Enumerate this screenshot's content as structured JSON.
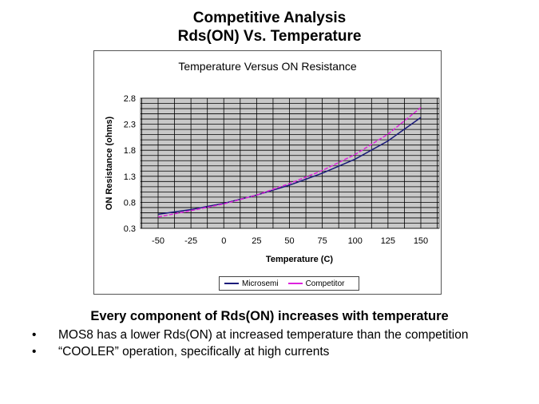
{
  "slide": {
    "title_line1": "Competitive Analysis",
    "title_line2": "Rds(ON) Vs. Temperature",
    "subheading": "Every component of Rds(ON) increases with temperature",
    "bullets": [
      "MOS8 has a lower Rds(ON) at increased temperature than the competition",
      "“COOLER” operation, specifically at high currents"
    ],
    "bullet_symbol": "•"
  },
  "chart_data": {
    "type": "line",
    "title": "Temperature Versus ON Resistance",
    "xlabel": "Temperature (C)",
    "ylabel": "ON Resistance (ohms)",
    "xlim": [
      -50,
      150
    ],
    "ylim": [
      0.3,
      2.8
    ],
    "x_ticks": [
      -50,
      -25,
      0,
      25,
      50,
      75,
      100,
      125,
      150
    ],
    "y_ticks": [
      0.3,
      0.8,
      1.3,
      1.8,
      2.3,
      2.8
    ],
    "y_tick_labels": [
      "0.3",
      "0.8",
      "1.3",
      "1.8",
      "2.3",
      "2.8"
    ],
    "grid": true,
    "legend_position": "bottom",
    "x": [
      -50,
      -25,
      0,
      25,
      50,
      75,
      100,
      125,
      150
    ],
    "series": [
      {
        "name": "Microsemi",
        "color": "#1a1a7a",
        "values": [
          0.57,
          0.66,
          0.78,
          0.94,
          1.13,
          1.36,
          1.63,
          1.98,
          2.43
        ]
      },
      {
        "name": "Competitor",
        "color": "#dd22dd",
        "values": [
          0.52,
          0.64,
          0.77,
          0.94,
          1.16,
          1.41,
          1.72,
          2.11,
          2.62
        ]
      }
    ]
  }
}
